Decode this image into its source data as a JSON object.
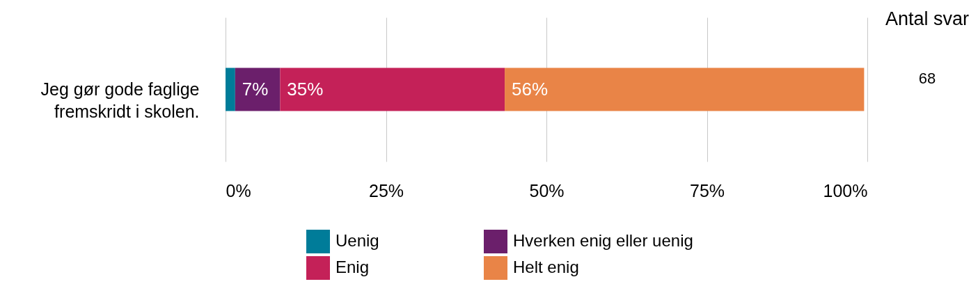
{
  "chart_data": {
    "type": "bar",
    "orientation": "horizontal",
    "stacked": true,
    "categories": [
      "Jeg gør gode faglige fremskridt i skolen."
    ],
    "series": [
      {
        "name": "Uenig",
        "color": "#007c99",
        "values": [
          1.5
        ],
        "value_labels": [
          null
        ]
      },
      {
        "name": "Hverken enig eller uenig",
        "color": "#6b1f6b",
        "values": [
          7
        ],
        "value_labels": [
          "7%"
        ]
      },
      {
        "name": "Enig",
        "color": "#c42158",
        "values": [
          35
        ],
        "value_labels": [
          "35%"
        ]
      },
      {
        "name": "Helt enig",
        "color": "#e98447",
        "values": [
          56
        ],
        "value_labels": [
          "56%"
        ]
      }
    ],
    "xlim": [
      0,
      100
    ],
    "xticks": [
      {
        "value": 0,
        "label": "0%"
      },
      {
        "value": 25,
        "label": "25%"
      },
      {
        "value": 50,
        "label": "50%"
      },
      {
        "value": 75,
        "label": "75%"
      },
      {
        "value": 100,
        "label": "100%"
      }
    ],
    "grid": "x",
    "legend": "bottom",
    "annotations": [
      "Antal svar",
      "68"
    ]
  }
}
